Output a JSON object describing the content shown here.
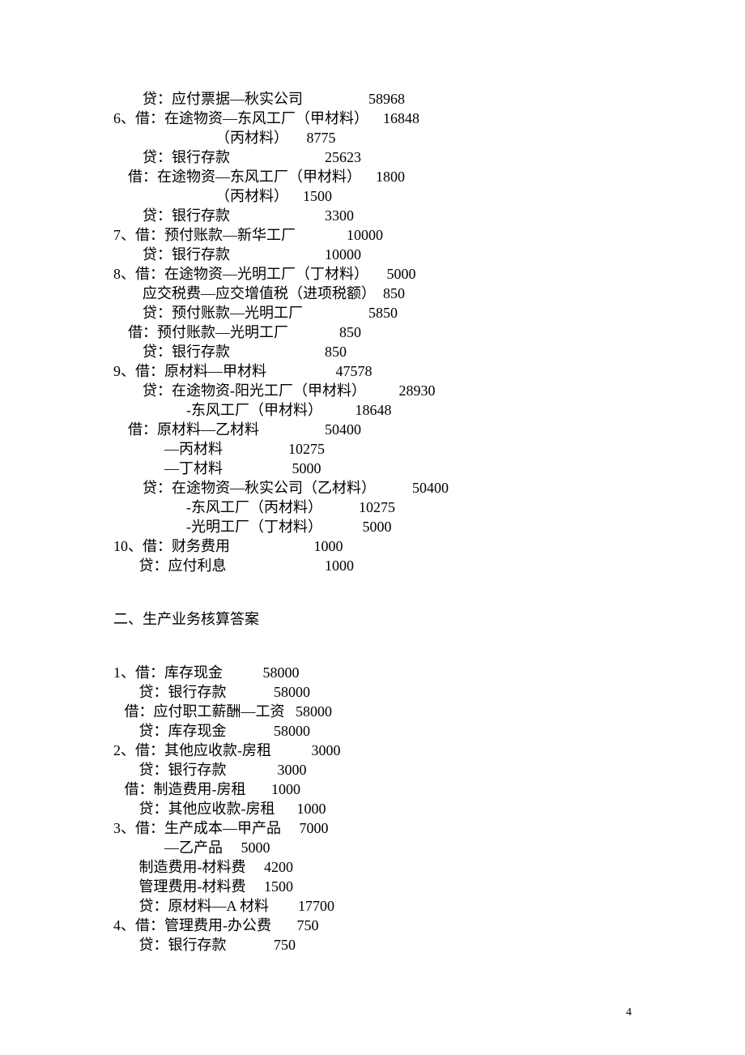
{
  "lines": {
    "l1": {
      "text": "        贷：应付票据—秋实公司                  58968"
    },
    "l2": {
      "text": "6、借：在途物资—东风工厂（甲材料）    16848"
    },
    "l3": {
      "text": "                            （丙材料）     8775"
    },
    "l4": {
      "text": "        贷：银行存款                          25623"
    },
    "l5": {
      "text": "    借：在途物资—东风工厂（甲材料）    1800"
    },
    "l6": {
      "text": "                            （丙材料）    1500"
    },
    "l7": {
      "text": "        贷：银行存款                          3300"
    },
    "l8": {
      "text": "7、借：预付账款—新华工厂              10000"
    },
    "l9": {
      "text": "        贷：银行存款                          10000"
    },
    "l10": {
      "text": "8、借：在途物资—光明工厂（丁材料）     5000"
    },
    "l11": {
      "text": "        应交税费—应交增值税（进项税额）  850"
    },
    "l12": {
      "text": "        贷：预付账款—光明工厂                  5850"
    },
    "l13": {
      "text": "    借：预付账款—光明工厂              850"
    },
    "l14": {
      "text": "        贷：银行存款                          850"
    },
    "l15": {
      "text": "9、借：原材料—甲材料                   47578"
    },
    "l16": {
      "text": "        贷：在途物资-阳光工厂（甲材料）         28930"
    },
    "l17": {
      "text": "                    -东风工厂（甲材料）         18648"
    },
    "l18": {
      "text": "    借：原材料—乙材料                  50400"
    },
    "l19": {
      "text": "              —丙材料                  10275"
    },
    "l20": {
      "text": "              —丁材料                   5000"
    },
    "l21": {
      "text": "        贷：在途物资—秋实公司（乙材料）          50400"
    },
    "l22": {
      "text": "                    -东风工厂（丙材料）          10275"
    },
    "l23": {
      "text": "                    -光明工厂（丁材料）           5000"
    },
    "l24": {
      "text": "10、借：财务费用                       1000"
    },
    "l25": {
      "text": "       贷：应付利息                           1000"
    },
    "section2_title": "二、生产业务核算答案",
    "s2l1": {
      "text": "1、借：库存现金           58000"
    },
    "s2l2": {
      "text": "       贷：银行存款             58000"
    },
    "s2l3": {
      "text": "   借：应付职工薪酬—工资   58000"
    },
    "s2l4": {
      "text": "       贷：库存现金             58000"
    },
    "s2l5": {
      "text": "2、借：其他应收款-房租           3000"
    },
    "s2l6": {
      "text": "       贷：银行存款              3000"
    },
    "s2l7": {
      "text": "   借：制造费用-房租       1000"
    },
    "s2l8": {
      "text": "       贷：其他应收款-房租      1000"
    },
    "s2l9": {
      "text": "3、借：生产成本—甲产品     7000"
    },
    "s2l10": {
      "text": "              —乙产品     5000"
    },
    "s2l11": {
      "text": "       制造费用-材料费     4200"
    },
    "s2l12": {
      "text": "       管理费用-材料费     1500"
    },
    "s2l13": {
      "text": "       贷：原材料—A 材料        17700"
    },
    "s2l14": {
      "text": ""
    },
    "s2l15": {
      "text": "4、借：管理费用-办公费       750"
    },
    "s2l16": {
      "text": "       贷：银行存款             750"
    }
  },
  "page_number": "4"
}
